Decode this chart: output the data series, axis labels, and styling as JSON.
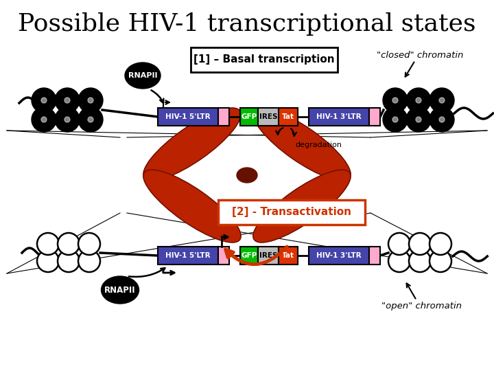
{
  "title": "Possible HIV-1 transcriptional states",
  "title_fontsize": 26,
  "bg_color": "#ffffff",
  "label1": "[1] – Basal transcription",
  "label2": "[2] - Transactivation",
  "closed_chromatin": "\"closed\" chromatin",
  "open_chromatin": "\"open\" chromatin",
  "degradation": "degradation",
  "rnapii": "RNAPII",
  "ltr5_label": "HIV-1 5'LTR",
  "ltr3_label": "HIV-1 3'LTR",
  "gfp_label": "GFP",
  "ires_label": "IRES",
  "tat_label": "Tat",
  "ltr_color": "#4444aa",
  "gfp_color": "#00bb00",
  "ires_color": "#bbbbbb",
  "tat_color": "#dd3300",
  "pink_color": "#ffaacc",
  "chrom_arm_color": "#bb2200",
  "chrom_center_color": "#661100"
}
